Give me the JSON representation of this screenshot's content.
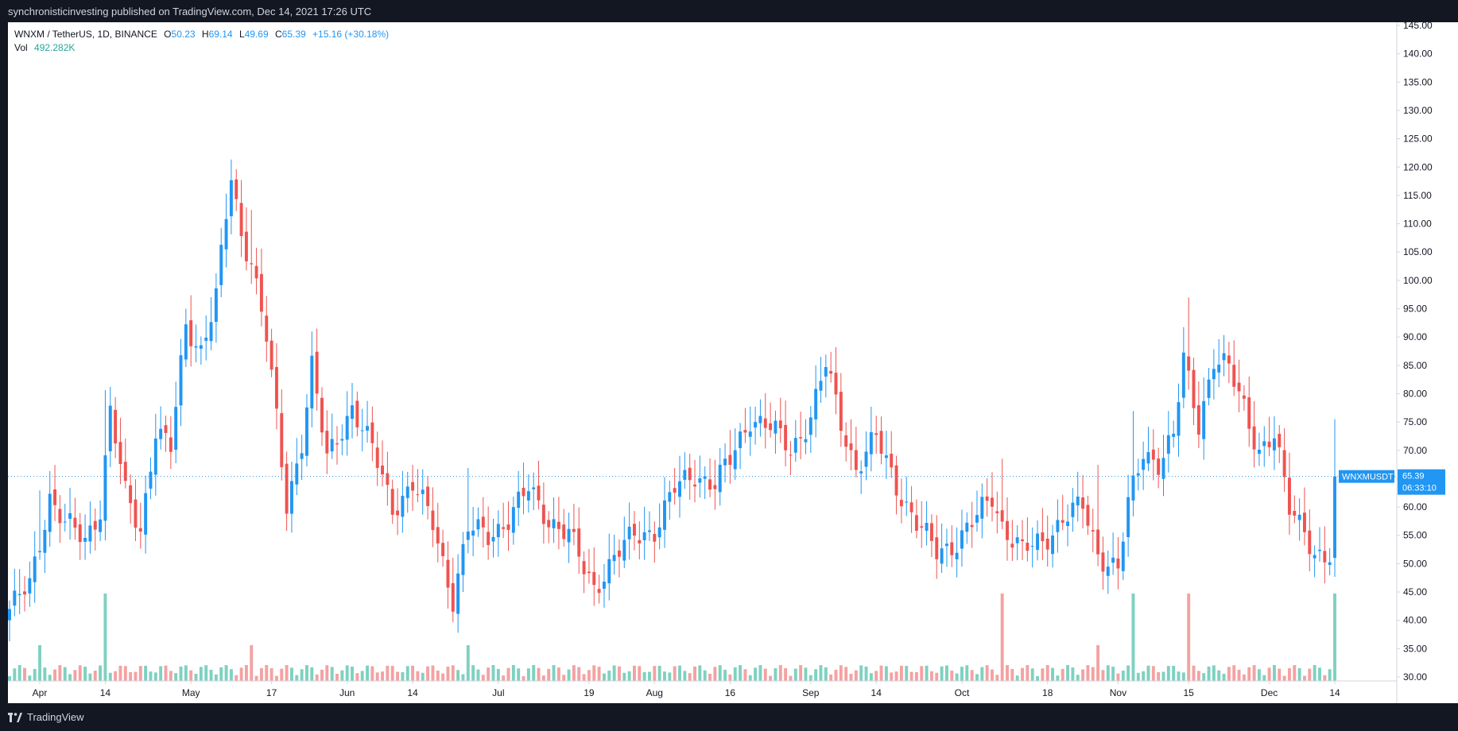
{
  "header": {
    "publisher": "synchronisticinvesting published on TradingView.com, Dec 14, 2021 17:26 UTC"
  },
  "legend": {
    "symbol": "WNXM / TetherUS, 1D, BINANCE",
    "open_label": "O",
    "open": "50.23",
    "high_label": "H",
    "high": "69.14",
    "low_label": "L",
    "low": "49.69",
    "close_label": "C",
    "close": "65.39",
    "change": "+15.16 (+30.18%)",
    "vol_label": "Vol",
    "vol": "492.282K"
  },
  "price_tag": {
    "symbol": "WNXMUSDT",
    "price": "65.39",
    "countdown": "06:33:10"
  },
  "footer": {
    "brand": "TradingView",
    "logo_icon": "tradingview-logo-icon"
  },
  "colors": {
    "up": "#2196f3",
    "down": "#ef5350",
    "vol_up": "#7fd1c0",
    "vol_down": "#f4a2a2",
    "tag": "#2196f3",
    "dark": "#131722"
  },
  "chart_data": {
    "type": "candlestick",
    "title": "WNXM / TetherUS, 1D, BINANCE",
    "y_ticks": [
      "145.00",
      "140.00",
      "135.00",
      "130.00",
      "125.00",
      "120.00",
      "115.00",
      "110.00",
      "105.00",
      "100.00",
      "95.00",
      "90.00",
      "85.00",
      "80.00",
      "75.00",
      "70.00",
      "65.00",
      "60.00",
      "55.00",
      "50.00",
      "45.00",
      "40.00",
      "35.00",
      "30.00"
    ],
    "ylim": [
      30,
      145
    ],
    "x_ticks": [
      {
        "label": "Apr",
        "date": "2021-04-01"
      },
      {
        "label": "14",
        "date": "2021-04-14"
      },
      {
        "label": "May",
        "date": "2021-05-01"
      },
      {
        "label": "17",
        "date": "2021-05-17"
      },
      {
        "label": "Jun",
        "date": "2021-06-01"
      },
      {
        "label": "14",
        "date": "2021-06-14"
      },
      {
        "label": "Jul",
        "date": "2021-07-01"
      },
      {
        "label": "19",
        "date": "2021-07-19"
      },
      {
        "label": "Aug",
        "date": "2021-08-01"
      },
      {
        "label": "16",
        "date": "2021-08-16"
      },
      {
        "label": "Sep",
        "date": "2021-09-01"
      },
      {
        "label": "14",
        "date": "2021-09-14"
      },
      {
        "label": "Oct",
        "date": "2021-10-01"
      },
      {
        "label": "18",
        "date": "2021-10-18"
      },
      {
        "label": "Nov",
        "date": "2021-11-01"
      },
      {
        "label": "15",
        "date": "2021-11-15"
      },
      {
        "label": "Dec",
        "date": "2021-12-01"
      },
      {
        "label": "14",
        "date": "2021-12-14"
      }
    ],
    "last_price": 65.39,
    "close_keypoints": [
      {
        "date": "2021-03-26",
        "close": 42
      },
      {
        "date": "2021-03-30",
        "close": 46
      },
      {
        "date": "2021-04-03",
        "close": 62
      },
      {
        "date": "2021-04-06",
        "close": 57
      },
      {
        "date": "2021-04-10",
        "close": 54
      },
      {
        "date": "2021-04-13",
        "close": 60
      },
      {
        "date": "2021-04-15",
        "close": 77
      },
      {
        "date": "2021-04-18",
        "close": 62
      },
      {
        "date": "2021-04-21",
        "close": 56
      },
      {
        "date": "2021-04-24",
        "close": 74
      },
      {
        "date": "2021-04-27",
        "close": 70
      },
      {
        "date": "2021-04-30",
        "close": 92
      },
      {
        "date": "2021-05-03",
        "close": 88
      },
      {
        "date": "2021-05-06",
        "close": 97
      },
      {
        "date": "2021-05-09",
        "close": 118
      },
      {
        "date": "2021-05-11",
        "close": 108
      },
      {
        "date": "2021-05-13",
        "close": 104
      },
      {
        "date": "2021-05-16",
        "close": 90
      },
      {
        "date": "2021-05-18",
        "close": 75
      },
      {
        "date": "2021-05-20",
        "close": 60
      },
      {
        "date": "2021-05-23",
        "close": 72
      },
      {
        "date": "2021-05-25",
        "close": 85
      },
      {
        "date": "2021-05-28",
        "close": 68
      },
      {
        "date": "2021-06-02",
        "close": 78
      },
      {
        "date": "2021-06-06",
        "close": 70
      },
      {
        "date": "2021-06-10",
        "close": 60
      },
      {
        "date": "2021-06-14",
        "close": 64
      },
      {
        "date": "2021-06-18",
        "close": 57
      },
      {
        "date": "2021-06-22",
        "close": 44
      },
      {
        "date": "2021-06-25",
        "close": 56
      },
      {
        "date": "2021-06-29",
        "close": 55
      },
      {
        "date": "2021-07-03",
        "close": 58
      },
      {
        "date": "2021-07-07",
        "close": 63
      },
      {
        "date": "2021-07-11",
        "close": 58
      },
      {
        "date": "2021-07-15",
        "close": 55
      },
      {
        "date": "2021-07-18",
        "close": 49
      },
      {
        "date": "2021-07-20",
        "close": 46
      },
      {
        "date": "2021-07-24",
        "close": 51
      },
      {
        "date": "2021-07-28",
        "close": 55
      },
      {
        "date": "2021-08-01",
        "close": 56
      },
      {
        "date": "2021-08-05",
        "close": 63
      },
      {
        "date": "2021-08-09",
        "close": 66
      },
      {
        "date": "2021-08-13",
        "close": 64
      },
      {
        "date": "2021-08-16",
        "close": 68
      },
      {
        "date": "2021-08-20",
        "close": 76
      },
      {
        "date": "2021-08-24",
        "close": 74
      },
      {
        "date": "2021-08-28",
        "close": 70
      },
      {
        "date": "2021-09-01",
        "close": 76
      },
      {
        "date": "2021-09-04",
        "close": 85
      },
      {
        "date": "2021-09-07",
        "close": 75
      },
      {
        "date": "2021-09-10",
        "close": 67
      },
      {
        "date": "2021-09-14",
        "close": 72
      },
      {
        "date": "2021-09-18",
        "close": 64
      },
      {
        "date": "2021-09-22",
        "close": 57
      },
      {
        "date": "2021-09-26",
        "close": 52
      },
      {
        "date": "2021-09-30",
        "close": 54
      },
      {
        "date": "2021-10-04",
        "close": 58
      },
      {
        "date": "2021-10-07",
        "close": 62
      },
      {
        "date": "2021-10-09",
        "close": 57
      },
      {
        "date": "2021-10-13",
        "close": 52
      },
      {
        "date": "2021-10-17",
        "close": 54
      },
      {
        "date": "2021-10-21",
        "close": 58
      },
      {
        "date": "2021-10-25",
        "close": 60
      },
      {
        "date": "2021-10-28",
        "close": 52
      },
      {
        "date": "2021-11-01",
        "close": 49
      },
      {
        "date": "2021-11-03",
        "close": 60
      },
      {
        "date": "2021-11-06",
        "close": 70
      },
      {
        "date": "2021-11-09",
        "close": 68
      },
      {
        "date": "2021-11-12",
        "close": 72
      },
      {
        "date": "2021-11-14",
        "close": 86
      },
      {
        "date": "2021-11-17",
        "close": 75
      },
      {
        "date": "2021-11-20",
        "close": 86
      },
      {
        "date": "2021-11-23",
        "close": 84
      },
      {
        "date": "2021-11-26",
        "close": 78
      },
      {
        "date": "2021-11-29",
        "close": 70
      },
      {
        "date": "2021-12-02",
        "close": 72
      },
      {
        "date": "2021-12-05",
        "close": 60
      },
      {
        "date": "2021-12-08",
        "close": 57
      },
      {
        "date": "2021-12-10",
        "close": 51
      },
      {
        "date": "2021-12-13",
        "close": 50
      },
      {
        "date": "2021-12-14",
        "close": 65.39
      }
    ],
    "volume_spikes": [
      {
        "date": "2021-04-14",
        "level": "high"
      },
      {
        "date": "2021-04-01",
        "level": "medium"
      },
      {
        "date": "2021-05-13",
        "level": "medium"
      },
      {
        "date": "2021-06-25",
        "level": "medium"
      },
      {
        "date": "2021-10-09",
        "level": "high"
      },
      {
        "date": "2021-10-28",
        "level": "medium"
      },
      {
        "date": "2021-11-04",
        "level": "high"
      },
      {
        "date": "2021-11-15",
        "level": "high"
      },
      {
        "date": "2021-12-14",
        "level": "high"
      }
    ]
  }
}
